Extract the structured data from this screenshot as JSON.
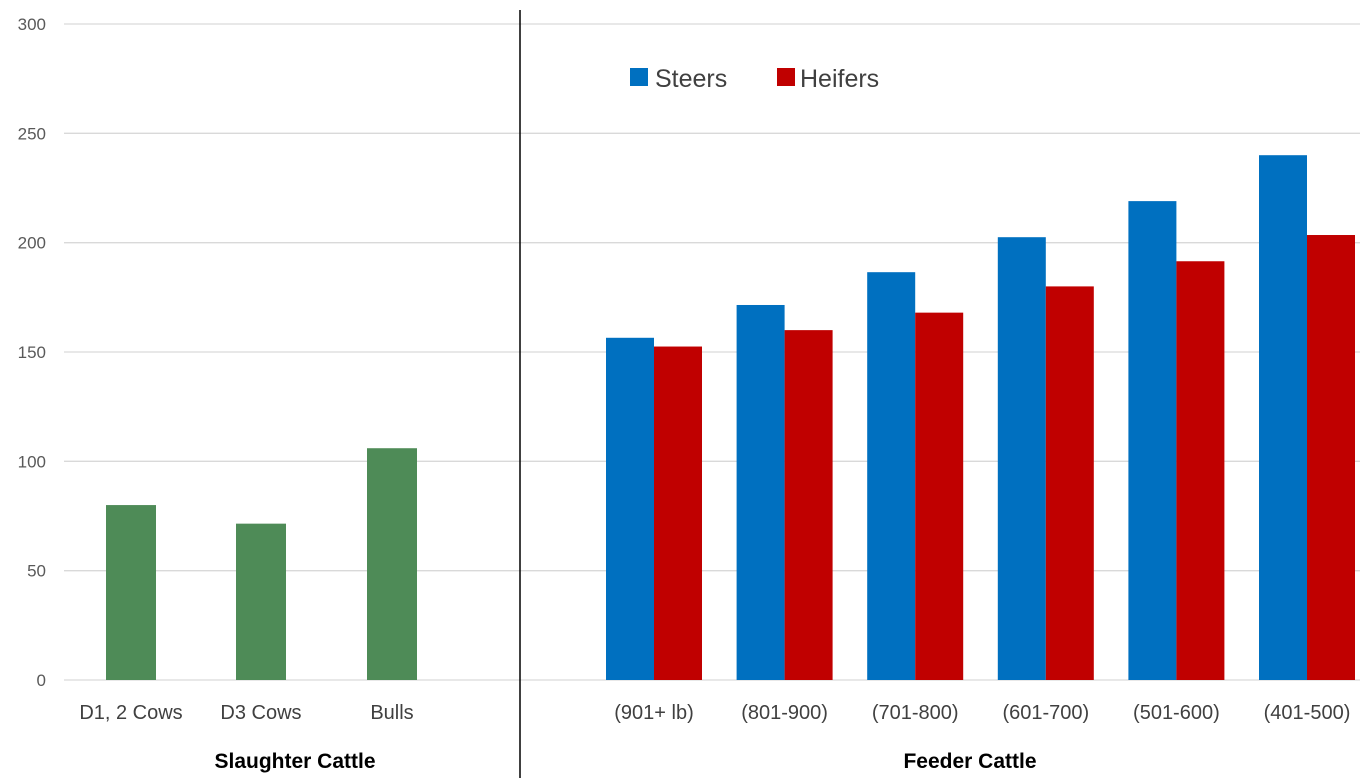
{
  "chart_data": {
    "type": "bar",
    "ylim": [
      0,
      300
    ],
    "yticks": [
      0,
      50,
      100,
      150,
      200,
      250,
      300
    ],
    "grid": true,
    "legend_placement": "top-left of feeder panel",
    "colors": {
      "slaughter": "#4e8b57",
      "steers": "#0070c0",
      "heifers": "#c00000"
    },
    "groups": [
      {
        "label": "Slaughter Cattle",
        "categories": [
          "D1, 2 Cows",
          "D3 Cows",
          "Bulls"
        ],
        "series": [
          {
            "values": [
              80,
              71.5,
              106
            ]
          }
        ]
      },
      {
        "label": "Feeder Cattle",
        "categories": [
          "(901+ lb)",
          "(801-900)",
          "(701-800)",
          "(601-700)",
          "(501-600)",
          "(401-500)"
        ],
        "series": [
          {
            "name": "Steers",
            "values": [
              156.5,
              171.5,
              186.5,
              202.5,
              219,
              240
            ]
          },
          {
            "name": "Heifers",
            "values": [
              152.5,
              160,
              168,
              180,
              191.5,
              203.5
            ]
          }
        ]
      }
    ]
  }
}
